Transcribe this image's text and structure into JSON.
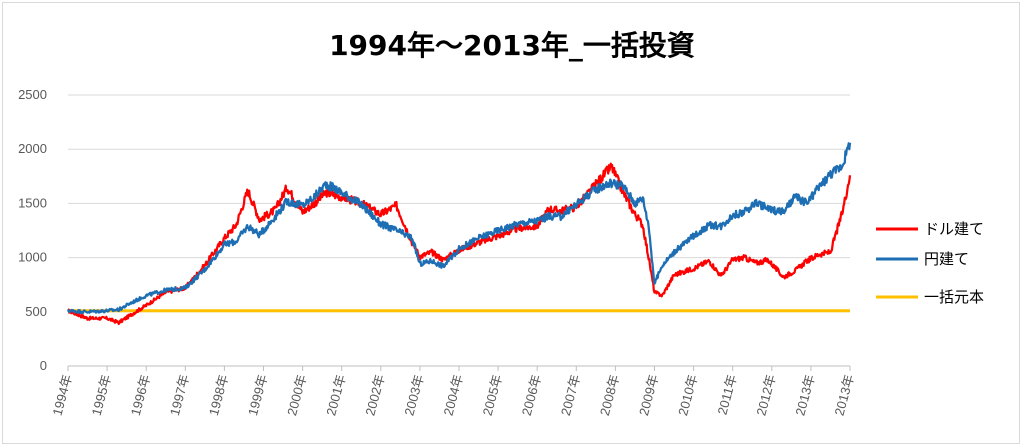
{
  "chart_data": {
    "type": "line",
    "title": "1994年～2013年_一括投資",
    "xlabel": "",
    "ylabel": "",
    "ylim": [
      0,
      2500
    ],
    "yticks": [
      0,
      500,
      1000,
      1500,
      2000,
      2500
    ],
    "grid": "horizontal",
    "legend_position": "right",
    "x_tick_labels": [
      "1994年",
      "1995年",
      "1996年",
      "1997年",
      "1998年",
      "1999年",
      "2000年",
      "2001年",
      "2002年",
      "2003年",
      "2004年",
      "2005年",
      "2006年",
      "2007年",
      "2008年",
      "2009年",
      "2010年",
      "2011年",
      "2012年",
      "2013年",
      "2013年"
    ],
    "x": [
      1994.0,
      1994.5,
      1995.0,
      1995.3,
      1995.6,
      1996.0,
      1996.5,
      1997.0,
      1997.5,
      1998.0,
      1998.3,
      1998.6,
      1998.9,
      1999.3,
      1999.6,
      2000.0,
      2000.3,
      2000.6,
      2001.0,
      2001.5,
      2002.0,
      2002.4,
      2002.8,
      2003.0,
      2003.3,
      2003.6,
      2004.0,
      2004.5,
      2005.0,
      2005.5,
      2006.0,
      2006.3,
      2006.6,
      2007.0,
      2007.3,
      2007.6,
      2007.9,
      2008.2,
      2008.5,
      2008.7,
      2008.85,
      2009.0,
      2009.2,
      2009.5,
      2010.0,
      2010.4,
      2010.7,
      2011.0,
      2011.3,
      2011.6,
      2011.9,
      2012.3,
      2012.6,
      2012.9,
      2013.2,
      2013.5,
      2013.8,
      2014.0
    ],
    "series": [
      {
        "name": "ドル建て",
        "color": "#ff0000",
        "values": [
          510,
          440,
          440,
          400,
          470,
          560,
          680,
          720,
          930,
          1180,
          1300,
          1620,
          1350,
          1440,
          1650,
          1420,
          1500,
          1600,
          1560,
          1500,
          1400,
          1480,
          1140,
          1010,
          1050,
          980,
          1070,
          1140,
          1200,
          1270,
          1290,
          1450,
          1430,
          1470,
          1590,
          1720,
          1840,
          1600,
          1400,
          1300,
          1000,
          680,
          650,
          840,
          900,
          970,
          830,
          980,
          1000,
          950,
          980,
          820,
          880,
          970,
          1030,
          1050,
          1410,
          1760
        ]
      },
      {
        "name": "円建て",
        "color": "#1e6eb4",
        "values": [
          510,
          500,
          510,
          520,
          580,
          650,
          700,
          720,
          890,
          1120,
          1150,
          1290,
          1210,
          1380,
          1520,
          1480,
          1560,
          1680,
          1600,
          1490,
          1310,
          1250,
          1180,
          940,
          970,
          920,
          1080,
          1180,
          1250,
          1310,
          1340,
          1380,
          1380,
          1490,
          1580,
          1650,
          1690,
          1660,
          1500,
          1550,
          1300,
          760,
          930,
          1050,
          1200,
          1300,
          1290,
          1390,
          1420,
          1510,
          1450,
          1420,
          1560,
          1500,
          1650,
          1770,
          1850,
          2060
        ]
      },
      {
        "name": "一括元本",
        "color": "#ffc000",
        "values": [
          510,
          510,
          510,
          510,
          510,
          510,
          510,
          510,
          510,
          510,
          510,
          510,
          510,
          510,
          510,
          510,
          510,
          510,
          510,
          510,
          510,
          510,
          510,
          510,
          510,
          510,
          510,
          510,
          510,
          510,
          510,
          510,
          510,
          510,
          510,
          510,
          510,
          510,
          510,
          510,
          510,
          510,
          510,
          510,
          510,
          510,
          510,
          510,
          510,
          510,
          510,
          510,
          510,
          510,
          510,
          510,
          510,
          510
        ]
      }
    ]
  }
}
